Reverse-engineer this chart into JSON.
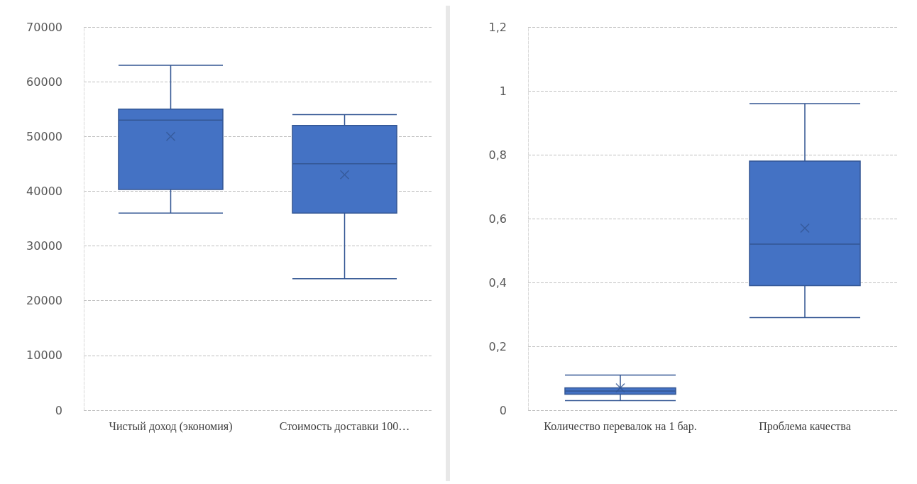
{
  "chart_data": [
    {
      "type": "box",
      "categories": [
        "Чистый доход (экономия)",
        "Стоимость доставки 100…"
      ],
      "color": "#4472c4",
      "boxes": [
        {
          "low": 36000,
          "q1": 40300,
          "median": 53000,
          "q3": 55000,
          "high": 63000,
          "mean": 50000
        },
        {
          "low": 24000,
          "q1": 36000,
          "median": 45000,
          "q3": 52000,
          "high": 54000,
          "mean": 43000
        }
      ],
      "ylim": [
        0,
        70000
      ],
      "yticks": [
        0,
        10000,
        20000,
        30000,
        40000,
        50000,
        60000,
        70000
      ],
      "grid": "y"
    },
    {
      "type": "box",
      "categories": [
        "Количество перевалок на 1 бар.",
        "Проблема качества"
      ],
      "color": "#4472c4",
      "boxes": [
        {
          "low": 0.03,
          "q1": 0.05,
          "median": 0.06,
          "q3": 0.07,
          "high": 0.11,
          "mean": 0.07
        },
        {
          "low": 0.29,
          "q1": 0.39,
          "median": 0.52,
          "q3": 0.78,
          "high": 0.96,
          "mean": 0.57
        }
      ],
      "ylim": [
        0,
        1.2
      ],
      "yticks": [
        0,
        {
          "value": 0.2,
          "label": "0,2"
        },
        {
          "value": 0.4,
          "label": "0,4"
        },
        {
          "value": 0.6,
          "label": "0,6"
        },
        {
          "value": 0.8,
          "label": "0,8"
        },
        1,
        {
          "value": 1.2,
          "label": "1,2"
        }
      ],
      "grid": "y"
    }
  ]
}
